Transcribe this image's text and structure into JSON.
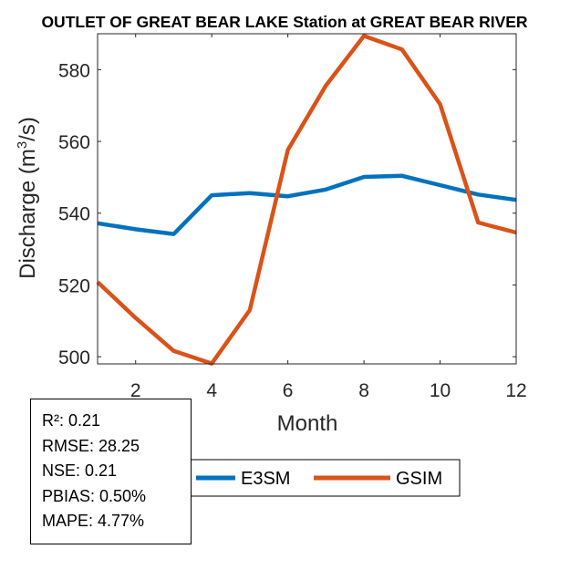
{
  "chart_data": {
    "type": "line",
    "title": "OUTLET OF GREAT BEAR LAKE  Station at  GREAT BEAR RIVER",
    "xlabel": "Month",
    "ylabel_main": "Discharge (m",
    "ylabel_sup": "3",
    "ylabel_end": "/s)",
    "xlim": [
      1,
      12
    ],
    "ylim": [
      498,
      590
    ],
    "xticks": [
      2,
      4,
      6,
      8,
      10,
      12
    ],
    "yticks": [
      500,
      520,
      540,
      560,
      580
    ],
    "x": [
      1,
      2,
      3,
      4,
      5,
      6,
      7,
      8,
      9,
      10,
      11,
      12
    ],
    "series": [
      {
        "name": "E3SM",
        "color": "#0072BD",
        "values": [
          537.2,
          535.5,
          534.2,
          545.0,
          545.6,
          544.7,
          546.6,
          550.1,
          550.4,
          547.8,
          545.2,
          543.7
        ]
      },
      {
        "name": "GSIM",
        "color": "#D95319",
        "values": [
          520.8,
          510.8,
          501.6,
          498.1,
          513.0,
          557.6,
          575.6,
          589.4,
          585.6,
          570.4,
          537.4,
          534.6
        ]
      }
    ],
    "legend": [
      "E3SM",
      "GSIM"
    ],
    "legend_location": "bottom"
  },
  "stats": [
    "R²: 0.21",
    "RMSE: 28.25",
    "NSE: 0.21",
    "PBIAS: 0.50%",
    "MAPE: 4.77%"
  ]
}
